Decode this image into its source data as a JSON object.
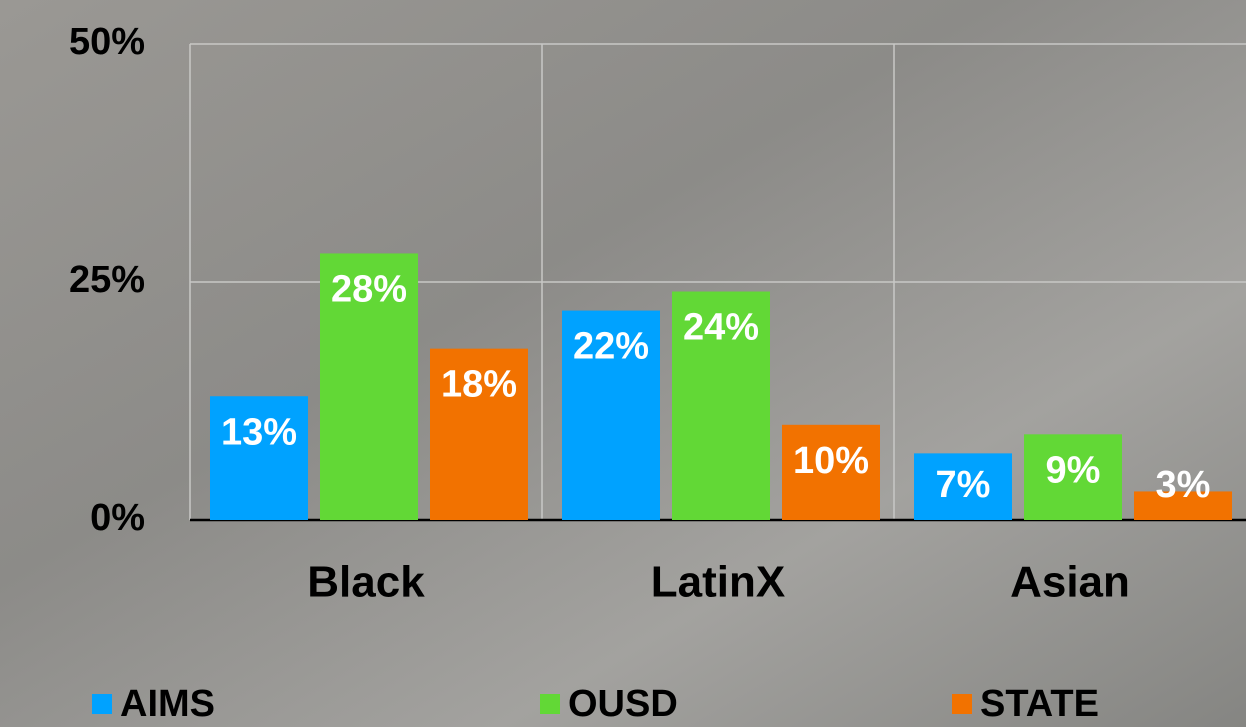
{
  "chart_data": {
    "type": "bar",
    "categories": [
      "Black",
      "LatinX",
      "Asian"
    ],
    "series": [
      {
        "name": "AIMS",
        "color": "#00a2ff",
        "values": [
          13,
          22,
          7
        ],
        "value_labels": [
          "13%",
          "22%",
          "7%"
        ]
      },
      {
        "name": "OUSD",
        "color": "#62d836",
        "values": [
          28,
          24,
          9
        ],
        "value_labels": [
          "28%",
          "24%",
          "9%"
        ]
      },
      {
        "name": "STATE",
        "color": "#f27200",
        "values": [
          18,
          10,
          3
        ],
        "value_labels": [
          "18%",
          "10%",
          "3%"
        ]
      }
    ],
    "ylim": [
      0,
      50
    ],
    "yticks": [
      {
        "value": 0,
        "label": "0%"
      },
      {
        "value": 25,
        "label": "25%"
      },
      {
        "value": 50,
        "label": "50%"
      }
    ],
    "grid": true
  }
}
